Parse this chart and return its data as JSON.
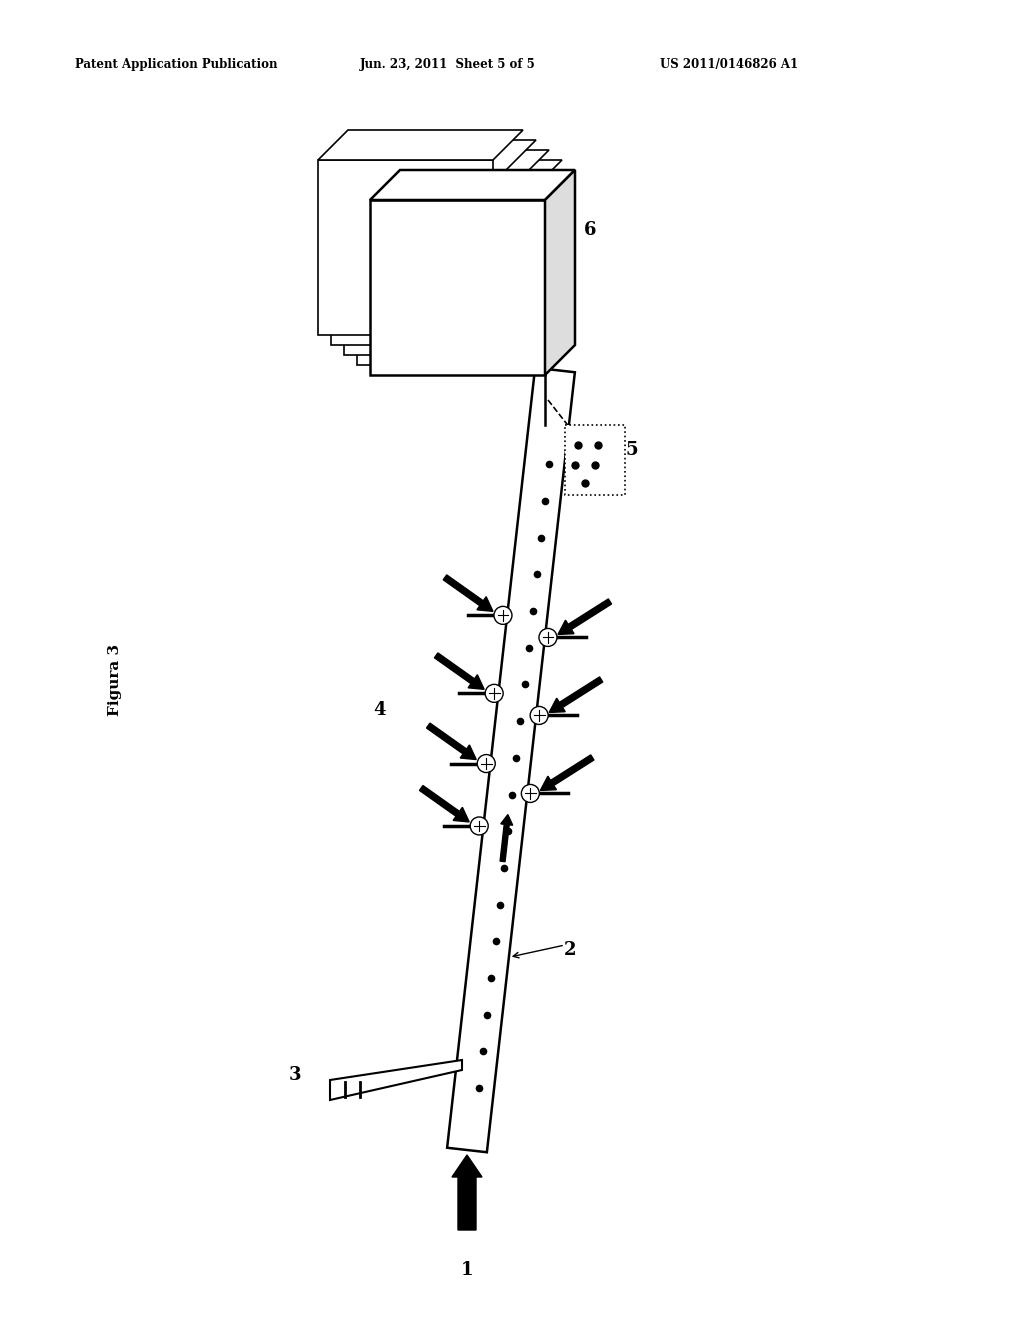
{
  "header_left": "Patent Application Publication",
  "header_mid": "Jun. 23, 2011  Sheet 5 of 5",
  "header_right": "US 2011/0146826 A1",
  "figure_label": "Figura 3",
  "background_color": "#ffffff",
  "line_color": "#000000",
  "fig_width": 10.24,
  "fig_height": 13.2,
  "dpi": 100
}
